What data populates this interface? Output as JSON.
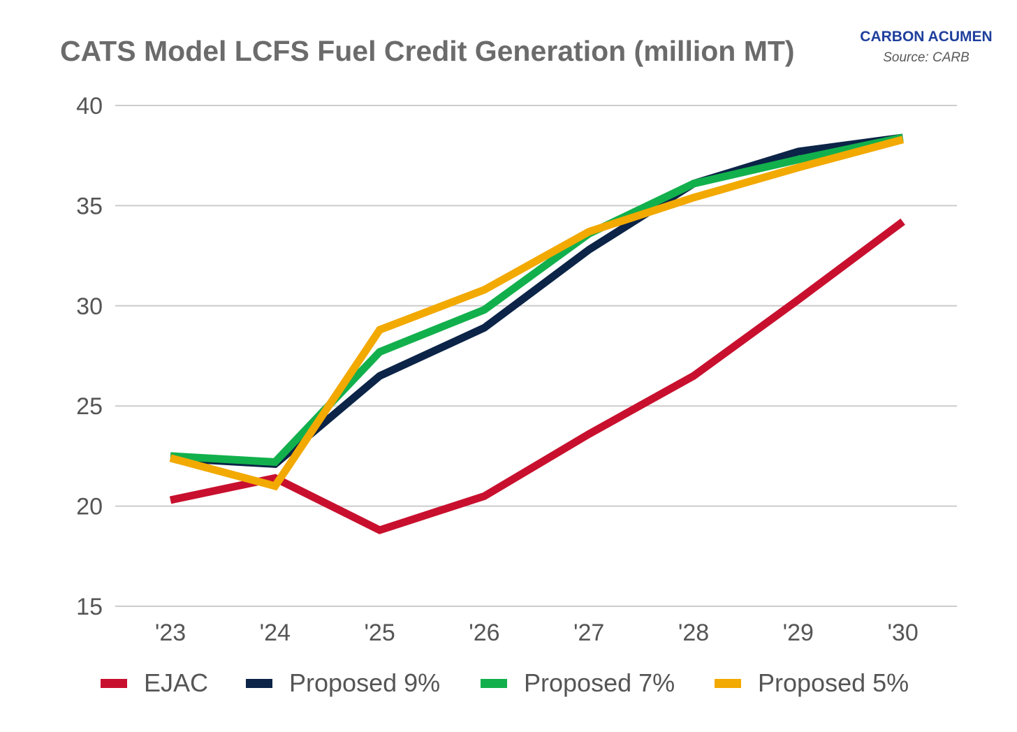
{
  "header": {
    "title": "CATS Model LCFS Fuel Credit Generation (million MT)",
    "brand": "CARBON ACUMEN",
    "source": "Source: CARB"
  },
  "chart_data": {
    "type": "line",
    "title": "CATS Model LCFS Fuel Credit Generation (million MT)",
    "xlabel": "",
    "ylabel": "",
    "categories": [
      "'23",
      "'24",
      "'25",
      "'26",
      "'27",
      "'28",
      "'29",
      "'30"
    ],
    "ylim": [
      15,
      40
    ],
    "yticks": [
      40,
      35,
      30,
      25,
      20,
      15
    ],
    "grid": true,
    "legend_position": "bottom",
    "series": [
      {
        "name": "EJAC",
        "color": "#c8102e",
        "values": [
          20.3,
          21.4,
          18.8,
          20.5,
          23.6,
          26.5,
          30.3,
          34.2
        ]
      },
      {
        "name": "Proposed 9%",
        "color": "#0b2447",
        "values": [
          22.4,
          22.1,
          26.5,
          28.9,
          32.8,
          36.1,
          37.7,
          38.4
        ]
      },
      {
        "name": "Proposed 7%",
        "color": "#12b04c",
        "values": [
          22.5,
          22.2,
          27.7,
          29.8,
          33.6,
          36.1,
          37.3,
          38.4
        ]
      },
      {
        "name": "Proposed 5%",
        "color": "#f2a900",
        "values": [
          22.4,
          21.0,
          28.8,
          30.8,
          33.7,
          35.4,
          36.9,
          38.3
        ]
      }
    ]
  }
}
